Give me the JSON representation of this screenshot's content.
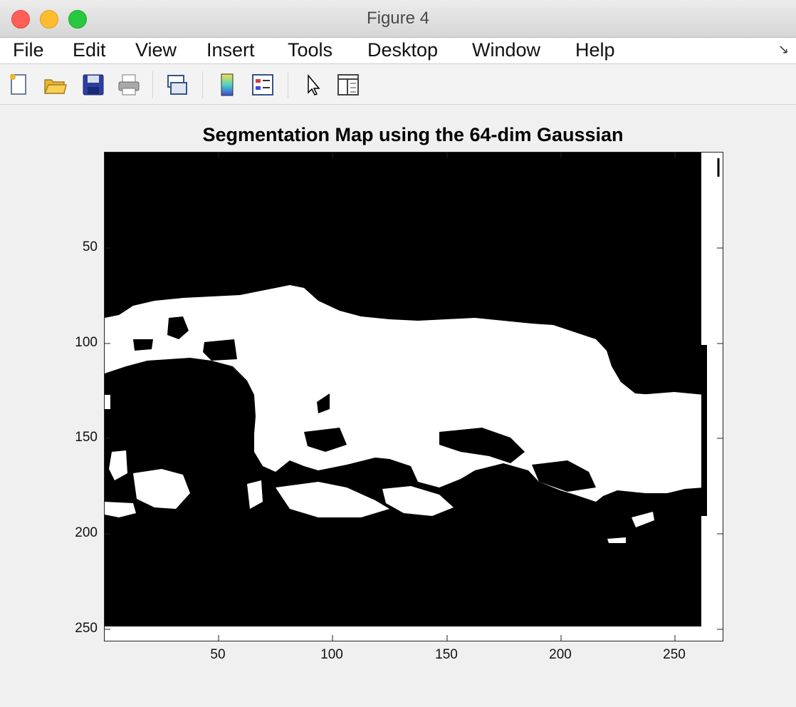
{
  "window": {
    "title": "Figure 4"
  },
  "menu": {
    "items": [
      "File",
      "Edit",
      "View",
      "Insert",
      "Tools",
      "Desktop",
      "Window",
      "Help"
    ]
  },
  "toolbar": {
    "icons": [
      "new-figure-icon",
      "open-file-icon",
      "save-icon",
      "print-icon",
      "link-icon",
      "colorbar-icon",
      "legend-icon",
      "pointer-icon",
      "property-editor-icon"
    ]
  },
  "plot": {
    "title": "Segmentation Map using the 64-dim Gaussian",
    "y_ticks": [
      "50",
      "100",
      "150",
      "200",
      "250"
    ],
    "x_ticks": [
      "50",
      "100",
      "150",
      "200",
      "250"
    ]
  },
  "chart_data": {
    "type": "heatmap",
    "title": "Segmentation Map using the 64-dim Gaussian",
    "colormap": [
      "#000000",
      "#ffffff"
    ],
    "xlim": [
      0,
      270
    ],
    "ylim": [
      0,
      255
    ],
    "x_ticks": [
      50,
      100,
      150,
      200,
      250
    ],
    "y_ticks": [
      50,
      100,
      150,
      200,
      250
    ]
  }
}
